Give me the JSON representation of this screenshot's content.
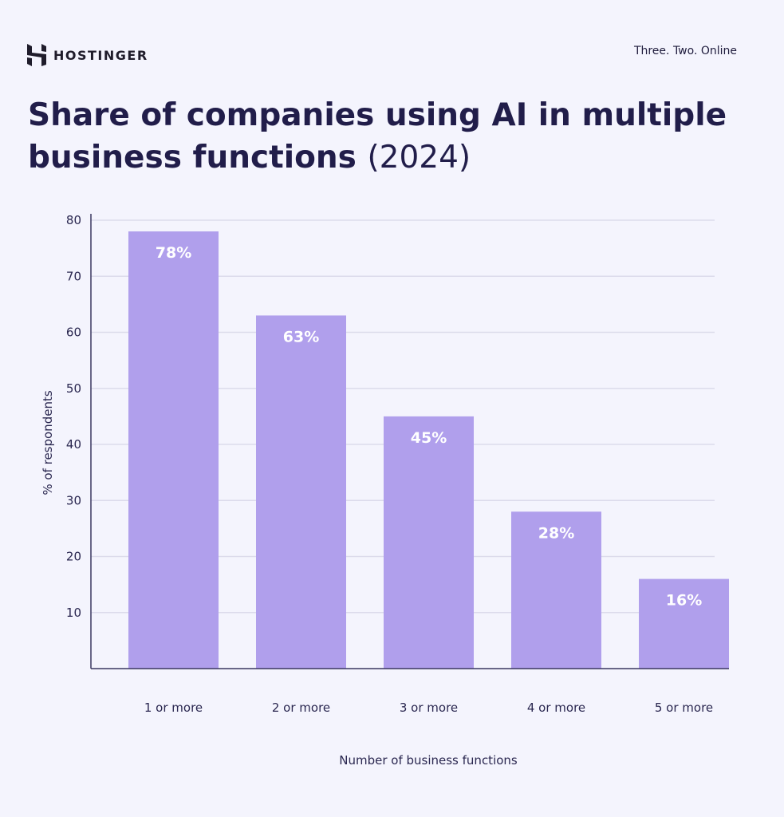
{
  "brand": {
    "name": "HOSTINGER",
    "tagline": "Three. Two. Online"
  },
  "title": {
    "main": "Share of companies using AI in multiple business functions",
    "year": "(2024)"
  },
  "colors": {
    "background": "#f4f4fd",
    "bar": "#b09fec",
    "text": "#211d4a",
    "grid": "#dcdbeb"
  },
  "chart_data": {
    "type": "bar",
    "title": "Share of companies using AI in multiple business functions (2024)",
    "categories": [
      "1 or more",
      "2 or more",
      "3 or more",
      "4 or more",
      "5 or more"
    ],
    "values": [
      78,
      63,
      45,
      28,
      16
    ],
    "data_labels": [
      "78%",
      "63%",
      "45%",
      "28%",
      "16%"
    ],
    "xlabel": "Number of business functions",
    "ylabel": "% of respondents",
    "ylim": [
      0,
      80
    ],
    "yticks": [
      10,
      20,
      30,
      40,
      50,
      60,
      70,
      80
    ],
    "grid": true,
    "legend": "none"
  }
}
